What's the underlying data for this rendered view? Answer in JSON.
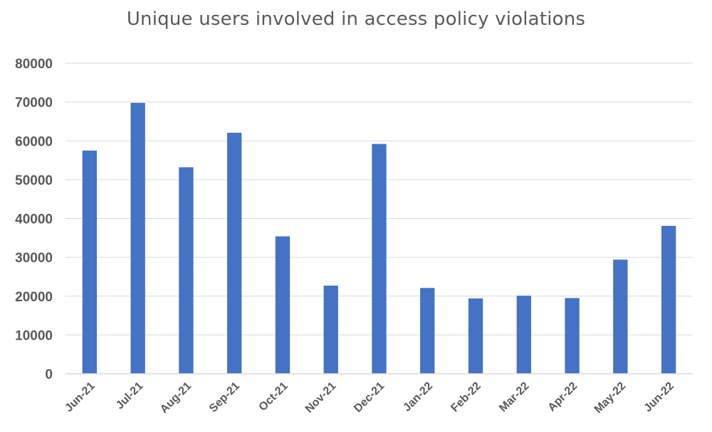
{
  "chart_data": {
    "type": "bar",
    "title": "Unique users involved in access policy violations",
    "xlabel": "",
    "ylabel": "",
    "categories": [
      "Jun-21",
      "Jul-21",
      "Aug-21",
      "Sep-21",
      "Oct-21",
      "Nov-21",
      "Dec-21",
      "Jan-22",
      "Feb-22",
      "Mar-22",
      "Apr-22",
      "May-22",
      "Jun-22"
    ],
    "values": [
      57500,
      69800,
      53200,
      62100,
      35400,
      22700,
      59200,
      22100,
      19400,
      20100,
      19500,
      29400,
      38100
    ],
    "ylim": [
      0,
      80000
    ],
    "yticks": [
      "0",
      "10000",
      "20000",
      "30000",
      "40000",
      "50000",
      "60000",
      "70000",
      "80000"
    ],
    "grid": true,
    "legend": "none",
    "bar_color": "#4472C4",
    "grid_color": "#D9D9D9",
    "text_color": "#595959"
  }
}
